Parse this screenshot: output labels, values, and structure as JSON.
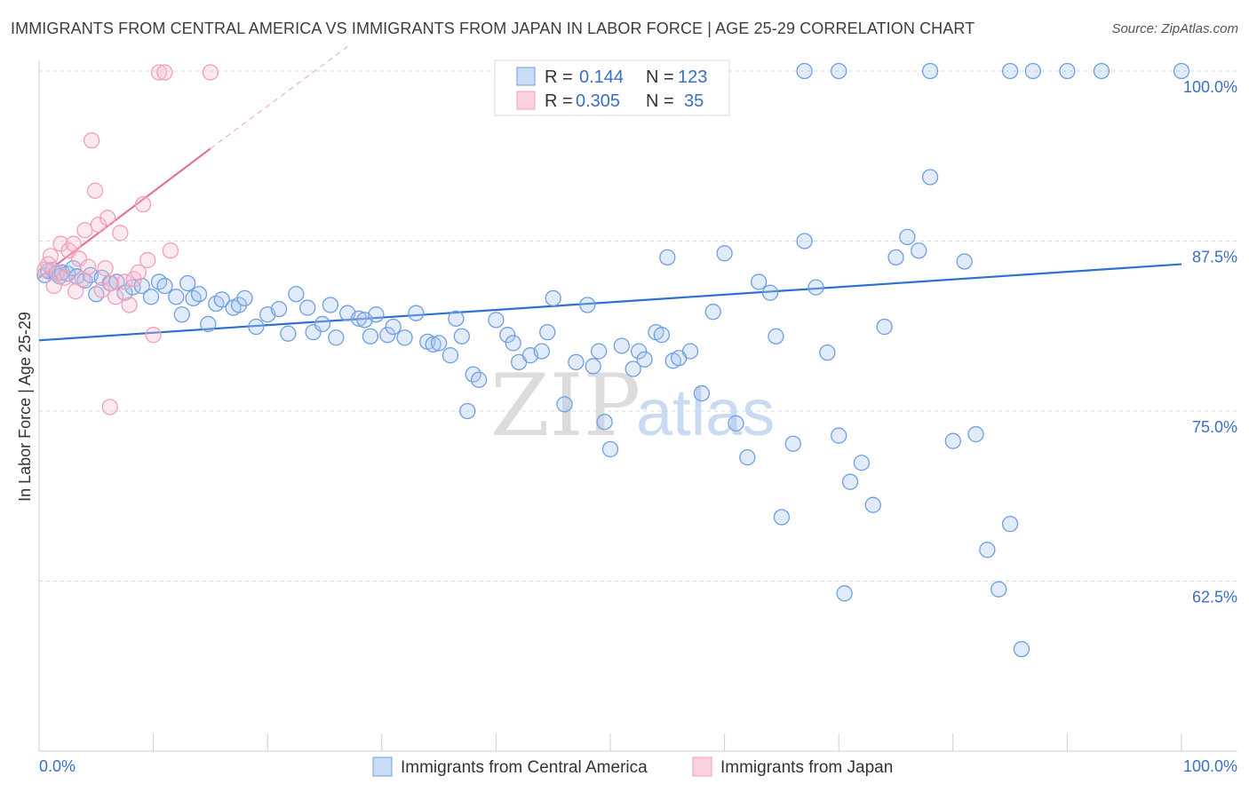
{
  "title": "IMMIGRANTS FROM CENTRAL AMERICA VS IMMIGRANTS FROM JAPAN IN LABOR FORCE | AGE 25-29 CORRELATION CHART",
  "source": "Source: ZipAtlas.com",
  "watermark": {
    "part1": "ZIP",
    "part2": "atlas"
  },
  "legend": {
    "r_label": "R =",
    "n_label": "N =",
    "rows": [
      {
        "r": "0.144",
        "n": "123"
      },
      {
        "r": "0.305",
        "n": "35"
      }
    ]
  },
  "bottom_legend": [
    "Immigrants from Central America",
    "Immigrants from Japan"
  ],
  "chart_data": {
    "type": "scatter",
    "title": "IMMIGRANTS FROM CENTRAL AMERICA VS IMMIGRANTS FROM JAPAN IN LABOR FORCE | AGE 25-29 CORRELATION CHART",
    "xlabel": "",
    "ylabel": "In Labor Force | Age 25-29",
    "xlim": [
      0,
      100
    ],
    "ylim": [
      50,
      100
    ],
    "x_tick_labels": [
      "0.0%",
      "100.0%"
    ],
    "y_ticks": [
      100,
      87.5,
      75,
      62.5
    ],
    "y_tick_labels": [
      "100.0%",
      "87.5%",
      "75.0%",
      "62.5%"
    ],
    "grid": "horizontal dashed",
    "colors": {
      "central_america": "#6f9fe0",
      "japan": "#f0a0bb",
      "blue_line": "#2f6fcf",
      "pink_line": "#e8709a"
    },
    "series": [
      {
        "name": "Immigrants from Central America",
        "R": 0.144,
        "N": 123,
        "trend": {
          "x": [
            0,
            100
          ],
          "y": [
            80.2,
            85.8
          ]
        },
        "points": [
          [
            0.5,
            85
          ],
          [
            0.8,
            85.3
          ],
          [
            1.2,
            85.4
          ],
          [
            1.5,
            85.1
          ],
          [
            1.8,
            84.9
          ],
          [
            2,
            85.2
          ],
          [
            2.5,
            85.1
          ],
          [
            3,
            85.5
          ],
          [
            3.3,
            84.9
          ],
          [
            4,
            84.6
          ],
          [
            4.5,
            85
          ],
          [
            5,
            83.6
          ],
          [
            5.5,
            84.8
          ],
          [
            6.2,
            84.4
          ],
          [
            6.8,
            84.5
          ],
          [
            7.5,
            83.7
          ],
          [
            8.2,
            84.1
          ],
          [
            9,
            84.2
          ],
          [
            9.8,
            83.4
          ],
          [
            10.5,
            84.5
          ],
          [
            11,
            84.2
          ],
          [
            12,
            83.4
          ],
          [
            12.5,
            82.1
          ],
          [
            13,
            84.4
          ],
          [
            13.5,
            83.3
          ],
          [
            14,
            83.6
          ],
          [
            14.8,
            81.4
          ],
          [
            15.5,
            82.9
          ],
          [
            16,
            83.2
          ],
          [
            17,
            82.6
          ],
          [
            17.5,
            82.8
          ],
          [
            18,
            83.3
          ],
          [
            19,
            81.2
          ],
          [
            20,
            82.1
          ],
          [
            21,
            82.5
          ],
          [
            21.8,
            80.7
          ],
          [
            22.5,
            83.6
          ],
          [
            23.5,
            82.6
          ],
          [
            24,
            80.8
          ],
          [
            24.8,
            81.4
          ],
          [
            25.5,
            82.8
          ],
          [
            26,
            80.4
          ],
          [
            27,
            82.2
          ],
          [
            28,
            81.8
          ],
          [
            28.5,
            81.7
          ],
          [
            29,
            80.5
          ],
          [
            29.5,
            82.1
          ],
          [
            30.5,
            80.6
          ],
          [
            31,
            81.2
          ],
          [
            32,
            80.4
          ],
          [
            33,
            82.2
          ],
          [
            34,
            80.1
          ],
          [
            34.5,
            79.9
          ],
          [
            35,
            80
          ],
          [
            36,
            79.1
          ],
          [
            36.5,
            81.8
          ],
          [
            37,
            80.5
          ],
          [
            37.5,
            75
          ],
          [
            38,
            77.7
          ],
          [
            38.5,
            77.3
          ],
          [
            40,
            81.7
          ],
          [
            41,
            80.6
          ],
          [
            41.5,
            80
          ],
          [
            42,
            78.6
          ],
          [
            43,
            79.1
          ],
          [
            44,
            79.4
          ],
          [
            44.5,
            80.8
          ],
          [
            45,
            83.3
          ],
          [
            46,
            75.5
          ],
          [
            47,
            78.6
          ],
          [
            48,
            82.8
          ],
          [
            48.5,
            78.3
          ],
          [
            49,
            79.4
          ],
          [
            49.5,
            74.2
          ],
          [
            50,
            72.2
          ],
          [
            51,
            79.8
          ],
          [
            52,
            78.1
          ],
          [
            52.5,
            79.4
          ],
          [
            53,
            78.8
          ],
          [
            54,
            80.8
          ],
          [
            54.5,
            80.6
          ],
          [
            55,
            86.3
          ],
          [
            55.5,
            78.7
          ],
          [
            56,
            78.9
          ],
          [
            57,
            79.4
          ],
          [
            58,
            76.3
          ],
          [
            59,
            82.3
          ],
          [
            60,
            86.6
          ],
          [
            61,
            74.1
          ],
          [
            62,
            71.6
          ],
          [
            63,
            84.5
          ],
          [
            64,
            83.7
          ],
          [
            64.5,
            80.5
          ],
          [
            65,
            67.2
          ],
          [
            66,
            72.6
          ],
          [
            67,
            87.5
          ],
          [
            68,
            84.1
          ],
          [
            69,
            79.3
          ],
          [
            70,
            73.2
          ],
          [
            70.5,
            61.6
          ],
          [
            71,
            69.8
          ],
          [
            72,
            71.2
          ],
          [
            73,
            68.1
          ],
          [
            74,
            81.2
          ],
          [
            75,
            86.3
          ],
          [
            76,
            87.8
          ],
          [
            77,
            86.8
          ],
          [
            78,
            92.2
          ],
          [
            80,
            72.8
          ],
          [
            81,
            86
          ],
          [
            82,
            73.3
          ],
          [
            83,
            64.8
          ],
          [
            84,
            61.9
          ],
          [
            85,
            66.7
          ],
          [
            86,
            57.5
          ],
          [
            67,
            100
          ],
          [
            70,
            100
          ],
          [
            78,
            100
          ],
          [
            85,
            100
          ],
          [
            87,
            100
          ],
          [
            90,
            100
          ],
          [
            93,
            100
          ],
          [
            100,
            100
          ]
        ]
      },
      {
        "name": "Immigrants from Japan",
        "R": 0.305,
        "N": 35,
        "trend": {
          "x": [
            0,
            15
          ],
          "y": [
            84.8,
            94.3
          ],
          "extrapolated": {
            "x": [
              15,
              27
            ],
            "y": [
              94.3,
              101.8
            ]
          }
        },
        "points": [
          [
            0.5,
            85.4
          ],
          [
            0.8,
            85.8
          ],
          [
            1,
            86.4
          ],
          [
            1.3,
            84.2
          ],
          [
            1.6,
            85.2
          ],
          [
            1.9,
            87.3
          ],
          [
            2.2,
            84.8
          ],
          [
            2.6,
            86.8
          ],
          [
            3,
            87.3
          ],
          [
            3.5,
            86.2
          ],
          [
            3.2,
            83.8
          ],
          [
            3.8,
            84.7
          ],
          [
            4,
            88.3
          ],
          [
            4.3,
            85.6
          ],
          [
            4.6,
            94.9
          ],
          [
            4.9,
            91.2
          ],
          [
            5.2,
            88.7
          ],
          [
            5.5,
            83.9
          ],
          [
            5.8,
            85.5
          ],
          [
            6,
            89.2
          ],
          [
            6.3,
            84.4
          ],
          [
            6.7,
            83.4
          ],
          [
            7.1,
            88.1
          ],
          [
            7.5,
            84.5
          ],
          [
            7.9,
            82.8
          ],
          [
            8.3,
            84.7
          ],
          [
            8.7,
            85.2
          ],
          [
            9.1,
            90.2
          ],
          [
            9.5,
            86.1
          ],
          [
            6.2,
            75.3
          ],
          [
            10,
            80.6
          ],
          [
            10.5,
            99.9
          ],
          [
            11,
            99.9
          ],
          [
            11.5,
            86.8
          ],
          [
            15,
            99.9
          ]
        ]
      }
    ]
  }
}
